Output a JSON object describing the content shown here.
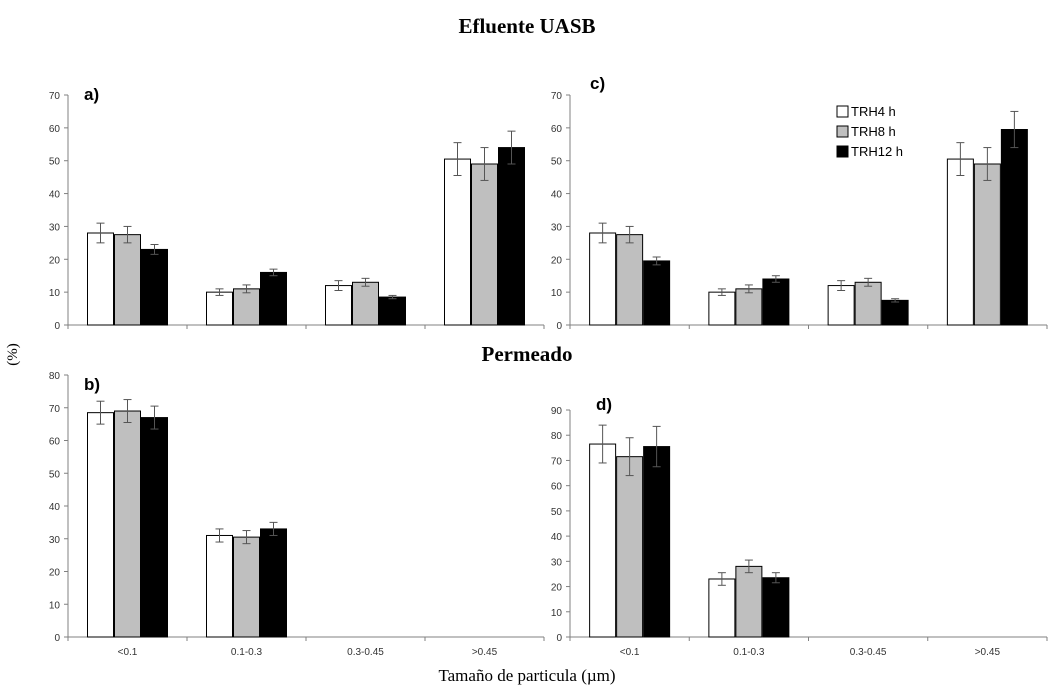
{
  "figure": {
    "top_title": "Efluente UASB",
    "middle_title": "Permeado",
    "ylabel": "(%)",
    "xlabel": "Tamaño de particula (µm)"
  },
  "legend": {
    "placement": "top-right of panel c",
    "entries": [
      {
        "label": "TRH4 h",
        "color": "#ffffff"
      },
      {
        "label": "TRH8 h",
        "color": "#bfbfbf"
      },
      {
        "label": "TRH12 h",
        "color": "#000000"
      }
    ]
  },
  "colors": {
    "series": [
      "#ffffff",
      "#bfbfbf",
      "#000000"
    ],
    "axis": "#808080"
  },
  "chart_data": [
    {
      "panel": "a)",
      "type": "bar",
      "categories": [
        "<0.1",
        "0.1-0.3",
        "0.3-0.45",
        ">0.45"
      ],
      "ylim": [
        0,
        70
      ],
      "yticks": [
        0,
        10,
        20,
        30,
        40,
        50,
        60,
        70
      ],
      "series": [
        {
          "name": "TRH4 h",
          "values": [
            28,
            10,
            12,
            50.5
          ],
          "errors": [
            3,
            1,
            1.5,
            5
          ]
        },
        {
          "name": "TRH8 h",
          "values": [
            27.5,
            11,
            13,
            49
          ],
          "errors": [
            2.5,
            1.2,
            1.2,
            5
          ]
        },
        {
          "name": "TRH12 h",
          "values": [
            23,
            16,
            8.5,
            54
          ],
          "errors": [
            1.5,
            1,
            0.5,
            5
          ]
        }
      ]
    },
    {
      "panel": "c)",
      "type": "bar",
      "categories": [
        "<0.1",
        "0.1-0.3",
        "0.3-0.45",
        ">0.45"
      ],
      "ylim": [
        0,
        70
      ],
      "yticks": [
        0,
        10,
        20,
        30,
        40,
        50,
        60,
        70
      ],
      "series": [
        {
          "name": "TRH4 h",
          "values": [
            28,
            10,
            12,
            50.5
          ],
          "errors": [
            3,
            1,
            1.5,
            5
          ]
        },
        {
          "name": "TRH8 h",
          "values": [
            27.5,
            11,
            13,
            49
          ],
          "errors": [
            2.5,
            1.2,
            1.2,
            5
          ]
        },
        {
          "name": "TRH12 h",
          "values": [
            19.5,
            14,
            7.5,
            59.5
          ],
          "errors": [
            1.2,
            1,
            0.5,
            5.5
          ]
        }
      ]
    },
    {
      "panel": "b)",
      "type": "bar",
      "categories": [
        "<0.1",
        "0.1-0.3",
        "0.3-0.45",
        ">0.45"
      ],
      "ylim": [
        0,
        80
      ],
      "yticks": [
        0,
        10,
        20,
        30,
        40,
        50,
        60,
        70,
        80
      ],
      "series": [
        {
          "name": "TRH4 h",
          "values": [
            68.5,
            31,
            0,
            0
          ],
          "errors": [
            3.5,
            2,
            0,
            0
          ]
        },
        {
          "name": "TRH8 h",
          "values": [
            69,
            30.5,
            0,
            0
          ],
          "errors": [
            3.5,
            2,
            0,
            0
          ]
        },
        {
          "name": "TRH12 h",
          "values": [
            67,
            33,
            0,
            0
          ],
          "errors": [
            3.5,
            2,
            0,
            0
          ]
        }
      ]
    },
    {
      "panel": "d)",
      "type": "bar",
      "categories": [
        "<0.1",
        "0.1-0.3",
        "0.3-0.45",
        ">0.45"
      ],
      "ylim": [
        0,
        90
      ],
      "yticks": [
        0,
        10,
        20,
        30,
        40,
        50,
        60,
        70,
        80,
        90
      ],
      "series": [
        {
          "name": "TRH4 h",
          "values": [
            76.5,
            23,
            0,
            0
          ],
          "errors": [
            7.5,
            2.5,
            0,
            0
          ]
        },
        {
          "name": "TRH8 h",
          "values": [
            71.5,
            28,
            0,
            0
          ],
          "errors": [
            7.5,
            2.5,
            0,
            0
          ]
        },
        {
          "name": "TRH12 h",
          "values": [
            75.5,
            23.5,
            0,
            0
          ],
          "errors": [
            8,
            2,
            0,
            0
          ]
        }
      ]
    }
  ]
}
